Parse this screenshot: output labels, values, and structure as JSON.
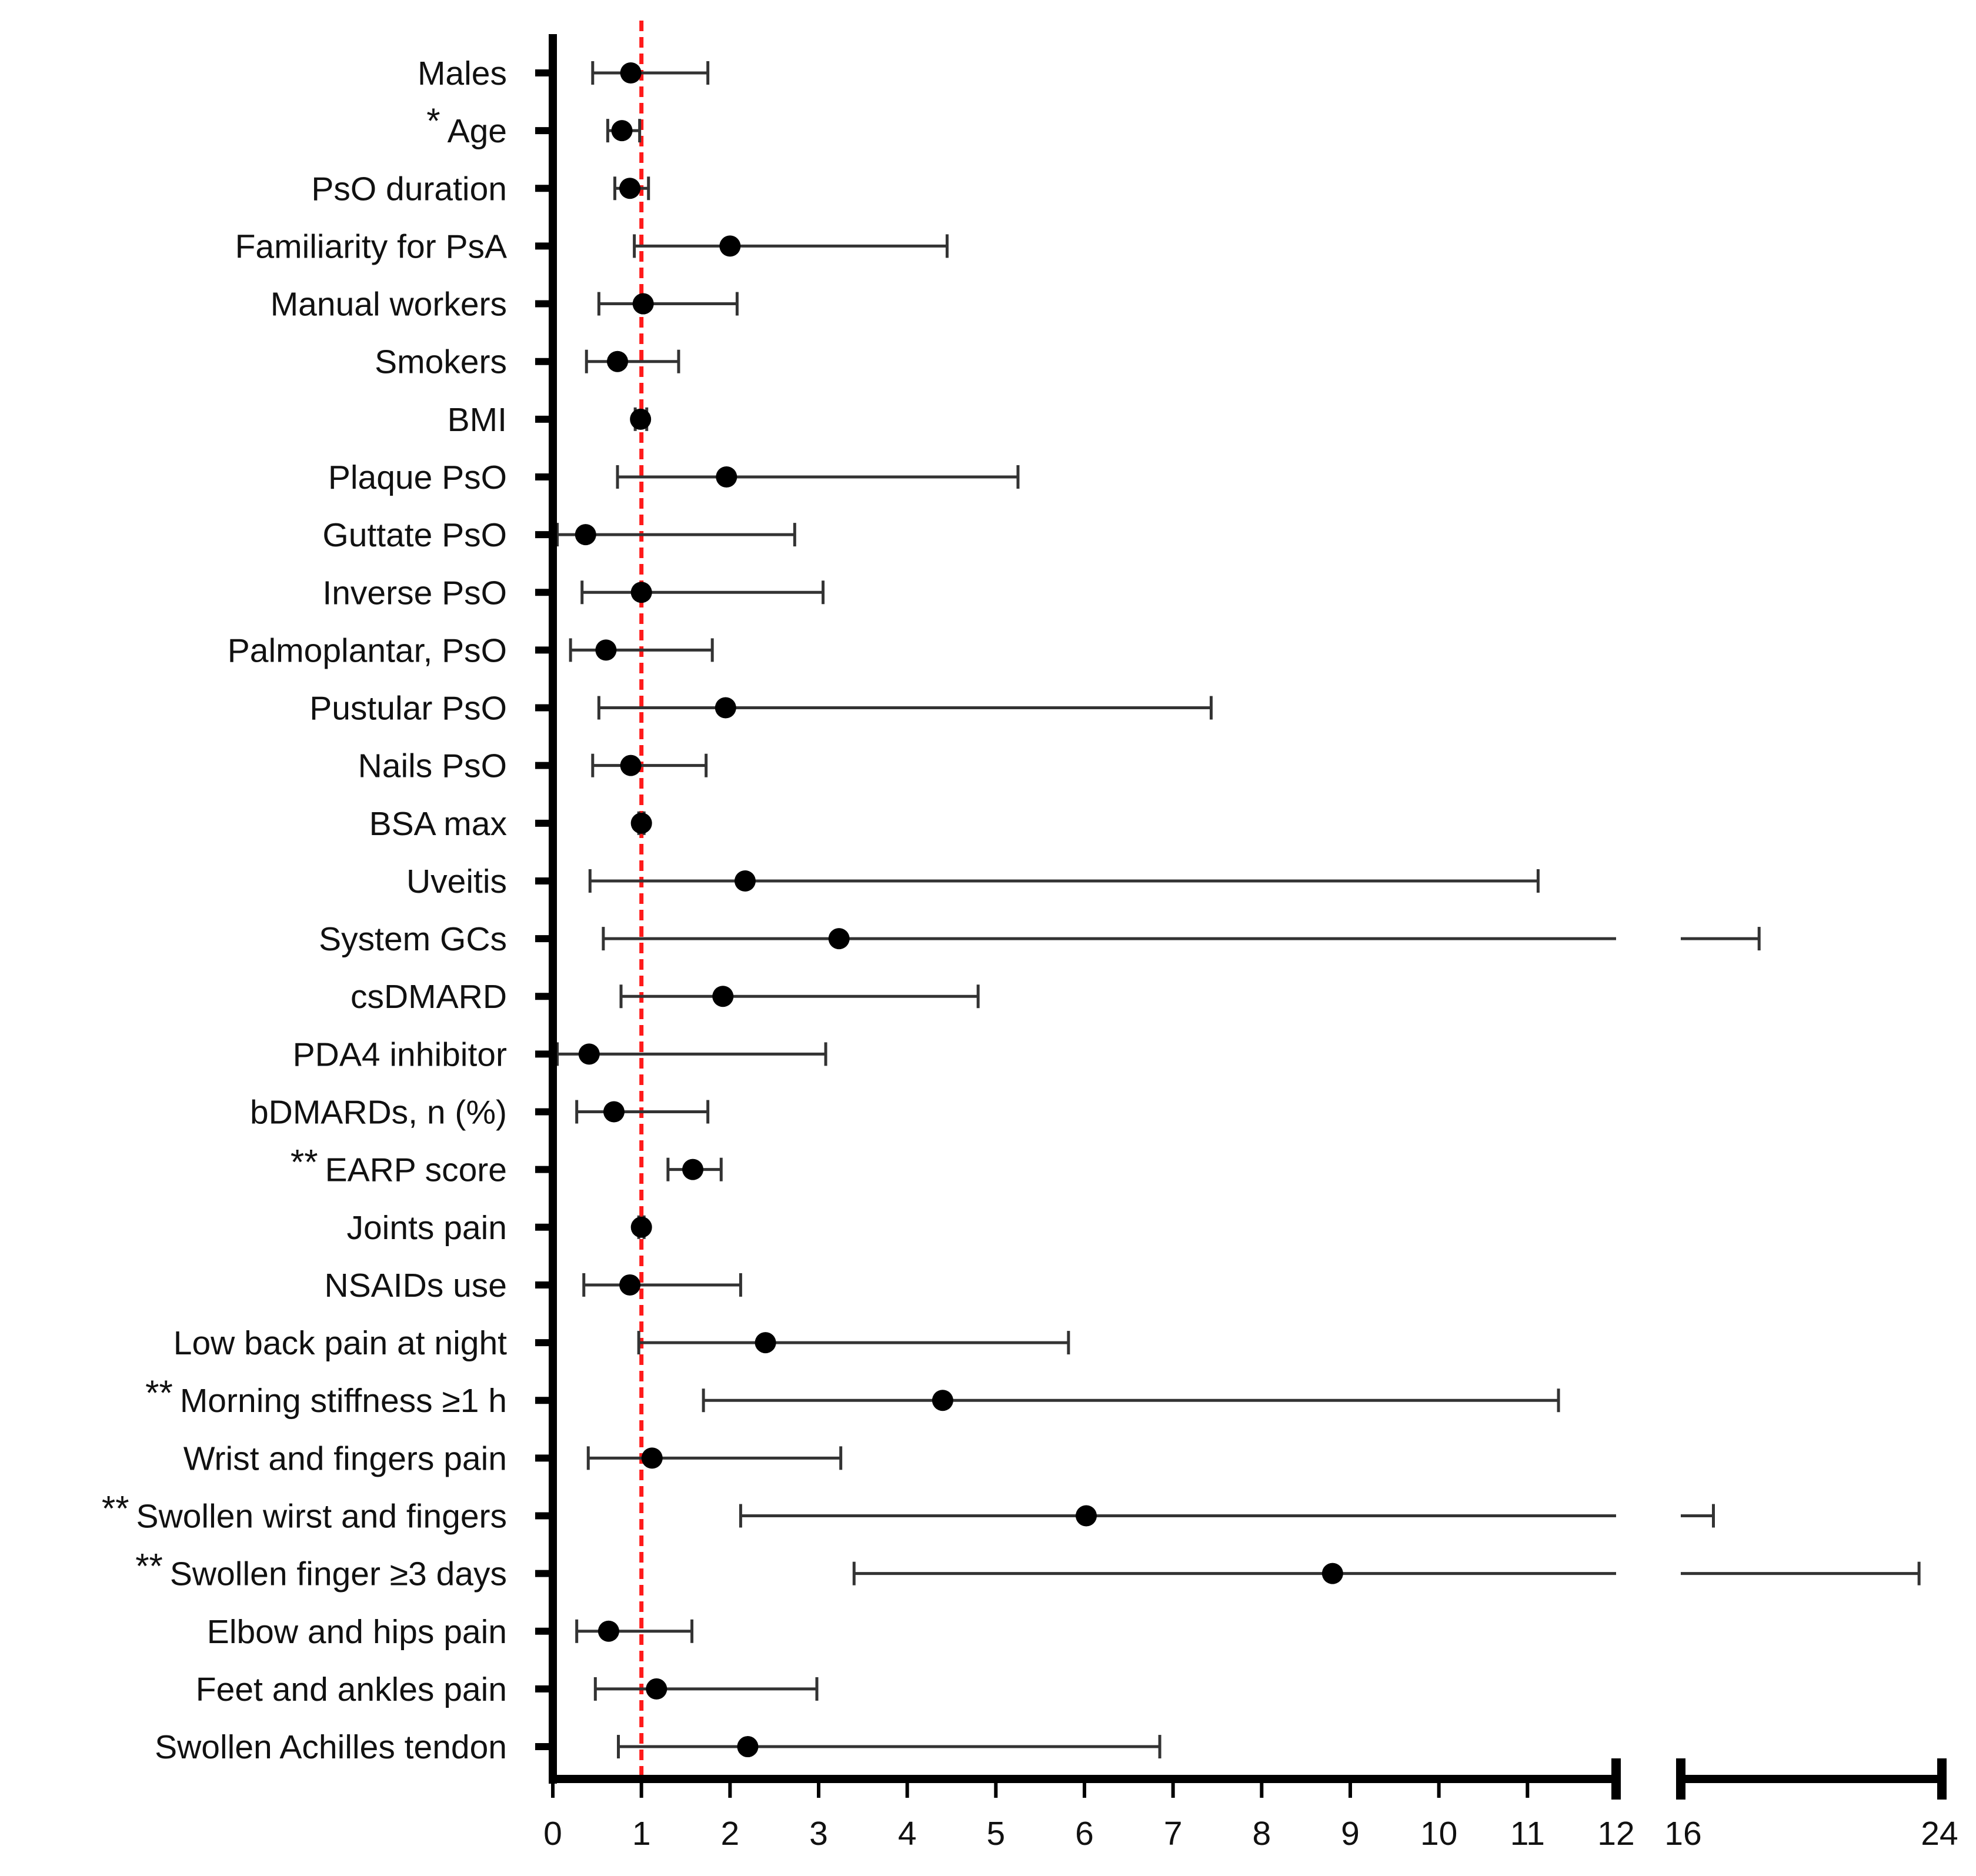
{
  "chart_data": {
    "type": "forest",
    "x_axis": {
      "segments": [
        {
          "range": [
            0,
            12
          ],
          "ticks": [
            0,
            1,
            2,
            3,
            4,
            5,
            6,
            7,
            8,
            9,
            10,
            11,
            12
          ]
        },
        {
          "range": [
            16,
            24
          ],
          "ticks": [
            16,
            24
          ]
        }
      ]
    },
    "reference_line": {
      "x": 1,
      "color": "#ff1a1a",
      "style": "dashed"
    },
    "rows": [
      {
        "label": "Males",
        "sig": "",
        "estimate": 0.88,
        "lower": 0.45,
        "upper": 1.75
      },
      {
        "label": "Age",
        "sig": "*",
        "estimate": 0.78,
        "lower": 0.62,
        "upper": 0.98
      },
      {
        "label": "PsO duration",
        "sig": "",
        "estimate": 0.87,
        "lower": 0.7,
        "upper": 1.08
      },
      {
        "label": "Familiarity for PsA",
        "sig": "",
        "estimate": 2.0,
        "lower": 0.92,
        "upper": 4.45
      },
      {
        "label": "Manual workers",
        "sig": "",
        "estimate": 1.02,
        "lower": 0.52,
        "upper": 2.08
      },
      {
        "label": "Smokers",
        "sig": "",
        "estimate": 0.73,
        "lower": 0.38,
        "upper": 1.42
      },
      {
        "label": "BMI",
        "sig": "",
        "estimate": 0.99,
        "lower": 0.93,
        "upper": 1.06
      },
      {
        "label": "Plaque PsO",
        "sig": "",
        "estimate": 1.96,
        "lower": 0.73,
        "upper": 5.25
      },
      {
        "label": "Guttate PsO",
        "sig": "",
        "estimate": 0.37,
        "lower": 0.05,
        "upper": 2.73
      },
      {
        "label": "Inverse PsO",
        "sig": "",
        "estimate": 1.0,
        "lower": 0.33,
        "upper": 3.05
      },
      {
        "label": "Palmoplantar, PsO",
        "sig": "",
        "estimate": 0.6,
        "lower": 0.2,
        "upper": 1.8
      },
      {
        "label": "Pustular PsO",
        "sig": "",
        "estimate": 1.95,
        "lower": 0.52,
        "upper": 7.43
      },
      {
        "label": "Nails PsO",
        "sig": "",
        "estimate": 0.88,
        "lower": 0.45,
        "upper": 1.73
      },
      {
        "label": "BSA max",
        "sig": "",
        "estimate": 1.0,
        "lower": 0.97,
        "upper": 1.03
      },
      {
        "label": "Uveitis",
        "sig": "",
        "estimate": 2.17,
        "lower": 0.42,
        "upper": 11.12
      },
      {
        "label": "System GCs",
        "sig": "",
        "estimate": 3.23,
        "lower": 0.57,
        "upper": 18.4
      },
      {
        "label": "csDMARD",
        "sig": "",
        "estimate": 1.92,
        "lower": 0.77,
        "upper": 4.8
      },
      {
        "label": "PDA4 inhibitor",
        "sig": "",
        "estimate": 0.41,
        "lower": 0.05,
        "upper": 3.08
      },
      {
        "label": "bDMARDs, n (%)",
        "sig": "",
        "estimate": 0.69,
        "lower": 0.27,
        "upper": 1.75
      },
      {
        "label": "EARP score",
        "sig": "**",
        "estimate": 1.58,
        "lower": 1.3,
        "upper": 1.9
      },
      {
        "label": "Joints pain",
        "sig": "",
        "estimate": 1.0,
        "lower": 0.97,
        "upper": 1.03
      },
      {
        "label": "NSAIDs use",
        "sig": "",
        "estimate": 0.87,
        "lower": 0.35,
        "upper": 2.12
      },
      {
        "label": "Low back pain at night",
        "sig": "",
        "estimate": 2.4,
        "lower": 0.97,
        "upper": 5.82
      },
      {
        "label": "Morning stiffness ≥1 h",
        "sig": "**",
        "estimate": 4.4,
        "lower": 1.7,
        "upper": 11.35
      },
      {
        "label": "Wrist and fingers pain",
        "sig": "",
        "estimate": 1.12,
        "lower": 0.4,
        "upper": 3.25
      },
      {
        "label": "Swollen wirst and fingers",
        "sig": "**",
        "estimate": 6.02,
        "lower": 2.12,
        "upper": 17.0
      },
      {
        "label": "Swollen finger ≥3 days",
        "sig": "**",
        "estimate": 8.8,
        "lower": 3.4,
        "upper": 23.3
      },
      {
        "label": "Elbow and hips pain",
        "sig": "",
        "estimate": 0.63,
        "lower": 0.27,
        "upper": 1.57
      },
      {
        "label": "Feet and ankles pain",
        "sig": "",
        "estimate": 1.17,
        "lower": 0.48,
        "upper": 2.98
      },
      {
        "label": "Swollen Achilles tendon",
        "sig": "",
        "estimate": 2.2,
        "lower": 0.74,
        "upper": 6.85
      }
    ]
  }
}
